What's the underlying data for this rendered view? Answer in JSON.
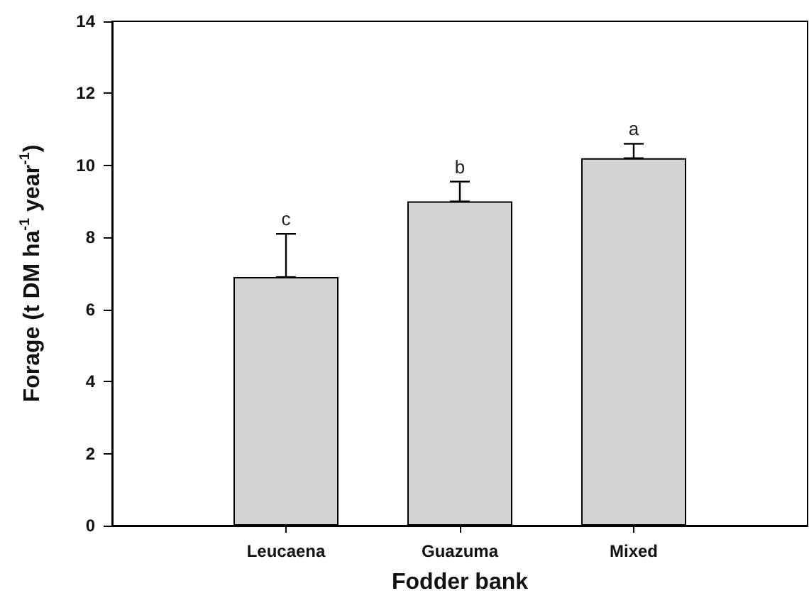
{
  "chart_data": {
    "type": "bar",
    "xlabel": "Fodder bank",
    "ylabel": "Forage (t DM ha$^{-1}$ year$^{-1}$)",
    "categories": [
      "Leucaena",
      "Guazuma",
      "Mixed"
    ],
    "values": [
      6.9,
      9.0,
      10.2
    ],
    "errors": [
      [
        6.9,
        8.1
      ],
      [
        9.0,
        9.55
      ],
      [
        10.2,
        10.6
      ]
    ],
    "color": "#d3d3d3",
    "ylim": [
      0,
      14
    ],
    "yticks": [
      0,
      2,
      4,
      6,
      8,
      10,
      12,
      14
    ],
    "grid": false,
    "annotations": [
      "c",
      "b",
      "a"
    ]
  }
}
